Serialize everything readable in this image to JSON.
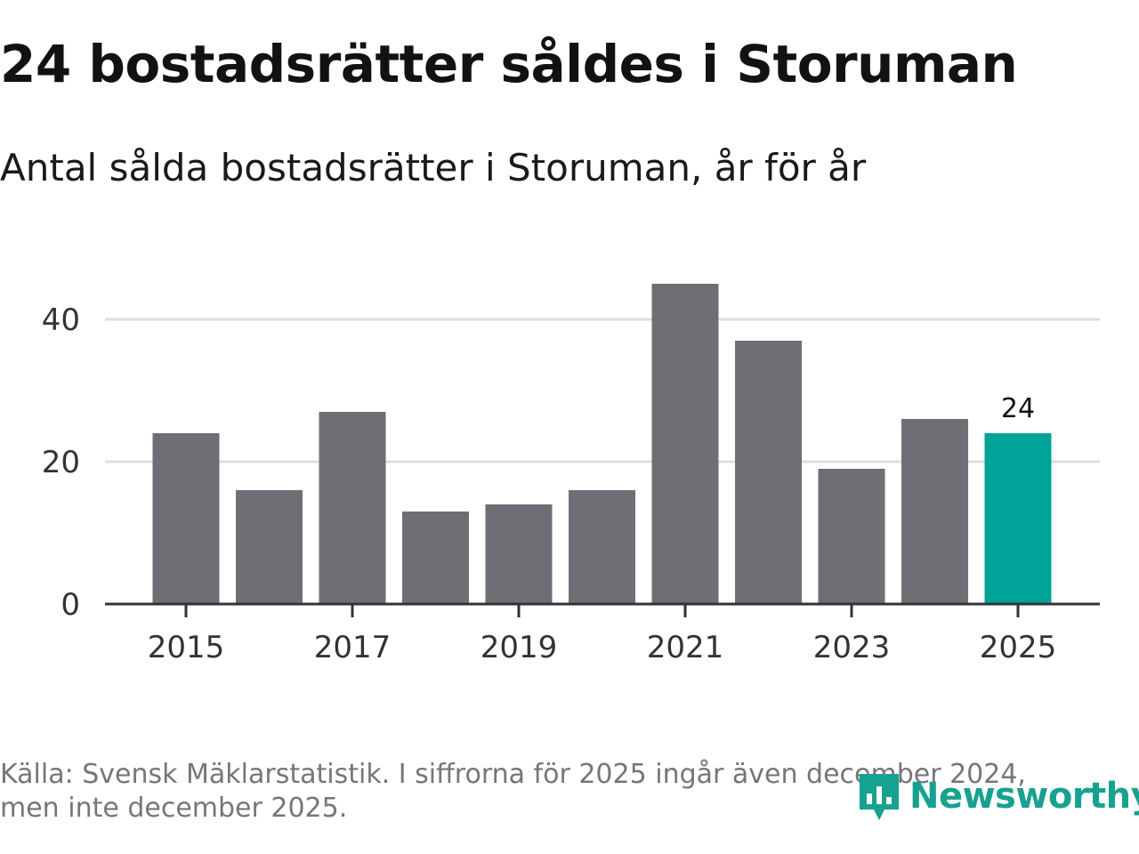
{
  "header": {
    "title": "24 bostadsrätter såldes i Storuman",
    "subtitle": "Antal sålda bostadsrätter i Storuman, år för år"
  },
  "footer": {
    "source": "Källa: Svensk Mäklarstatistik. I siffrorna för 2025 ingår även december 2024, men inte december 2025.",
    "brand": "Newsworthy"
  },
  "colors": {
    "bar": "#6f6e75",
    "highlight": "#00a397",
    "grid": "#dddddd",
    "axis": "#333333",
    "text": "#333333",
    "brand": "#17a190"
  },
  "chart_data": {
    "type": "bar",
    "title": "Antal sålda bostadsrätter i Storuman, år för år",
    "xlabel": "",
    "ylabel": "",
    "categories": [
      "2015",
      "2016",
      "2017",
      "2018",
      "2019",
      "2020",
      "2021",
      "2022",
      "2023",
      "2024",
      "2025"
    ],
    "values": [
      24,
      16,
      27,
      13,
      14,
      16,
      45,
      37,
      19,
      26,
      24
    ],
    "highlight_index": 10,
    "highlight_label": "24",
    "x_tick_labels": [
      "2015",
      "2017",
      "2019",
      "2021",
      "2023",
      "2025"
    ],
    "y_ticks": [
      0,
      20,
      40
    ],
    "ylim": [
      0,
      48
    ],
    "grid": true
  }
}
